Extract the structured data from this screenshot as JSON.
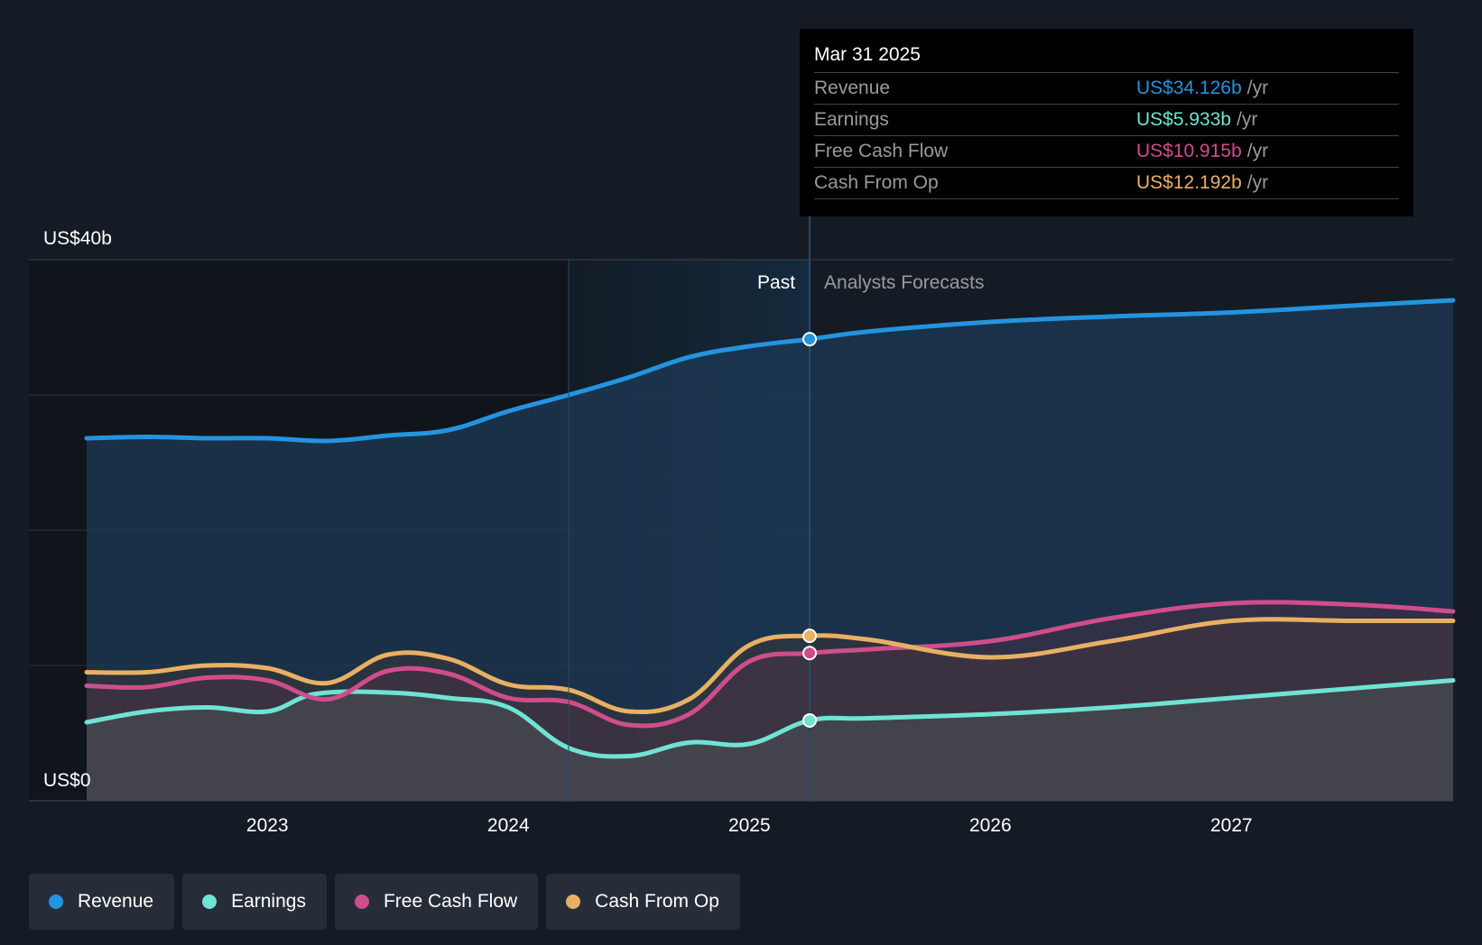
{
  "tooltip": {
    "date": "Mar 31 2025",
    "rows": [
      {
        "label": "Revenue",
        "value": "US$34.126b",
        "unit": "/yr",
        "color": "#2394df"
      },
      {
        "label": "Earnings",
        "value": "US$5.933b",
        "unit": "/yr",
        "color": "#6fe3d4"
      },
      {
        "label": "Free Cash Flow",
        "value": "US$10.915b",
        "unit": "/yr",
        "color": "#d04d8c"
      },
      {
        "label": "Cash From Op",
        "value": "US$12.192b",
        "unit": "/yr",
        "color": "#e9b063"
      }
    ]
  },
  "legend": [
    {
      "label": "Revenue",
      "color": "#2394df"
    },
    {
      "label": "Earnings",
      "color": "#6fe3d4"
    },
    {
      "label": "Free Cash Flow",
      "color": "#d04d8c"
    },
    {
      "label": "Cash From Op",
      "color": "#e9b063"
    }
  ],
  "chart_data": {
    "type": "area",
    "y_top_label": "US$40b",
    "y_bottom_label": "US$0",
    "ylim": [
      0,
      40
    ],
    "xlim": [
      2022.15,
      2027.92
    ],
    "x_ticks": [
      "2023",
      "2024",
      "2025",
      "2026",
      "2027"
    ],
    "x_tick_values": [
      2023,
      2024,
      2025,
      2026,
      2027
    ],
    "past_label": "Past",
    "forecast_label": "Analysts Forecasts",
    "divider_x": 2025.25,
    "highlight_start": 2024.25,
    "series": [
      {
        "name": "Revenue",
        "color": "#2394df",
        "key": "revenue",
        "points": [
          [
            2022.25,
            26.8
          ],
          [
            2022.5,
            26.9
          ],
          [
            2022.75,
            26.8
          ],
          [
            2023.0,
            26.8
          ],
          [
            2023.25,
            26.6
          ],
          [
            2023.5,
            27.0
          ],
          [
            2023.75,
            27.4
          ],
          [
            2024.0,
            28.8
          ],
          [
            2024.25,
            30.0
          ],
          [
            2024.5,
            31.3
          ],
          [
            2024.75,
            32.8
          ],
          [
            2025.0,
            33.6
          ],
          [
            2025.25,
            34.126
          ],
          [
            2025.5,
            34.7
          ],
          [
            2026.0,
            35.4
          ],
          [
            2026.5,
            35.8
          ],
          [
            2027.0,
            36.1
          ],
          [
            2027.5,
            36.6
          ],
          [
            2027.92,
            37.0
          ]
        ]
      },
      {
        "name": "Earnings",
        "color": "#6fe3d4",
        "key": "earnings",
        "points": [
          [
            2022.25,
            5.8
          ],
          [
            2022.5,
            6.6
          ],
          [
            2022.75,
            6.9
          ],
          [
            2023.0,
            6.6
          ],
          [
            2023.2,
            7.9
          ],
          [
            2023.5,
            8.0
          ],
          [
            2023.75,
            7.6
          ],
          [
            2024.0,
            6.9
          ],
          [
            2024.25,
            3.9
          ],
          [
            2024.5,
            3.3
          ],
          [
            2024.75,
            4.3
          ],
          [
            2025.0,
            4.2
          ],
          [
            2025.25,
            5.933
          ],
          [
            2025.5,
            6.1
          ],
          [
            2026.0,
            6.4
          ],
          [
            2026.5,
            6.9
          ],
          [
            2027.0,
            7.6
          ],
          [
            2027.5,
            8.3
          ],
          [
            2027.92,
            8.9
          ]
        ]
      },
      {
        "name": "Free Cash Flow",
        "color": "#d04d8c",
        "key": "fcf",
        "points": [
          [
            2022.25,
            8.5
          ],
          [
            2022.5,
            8.4
          ],
          [
            2022.75,
            9.1
          ],
          [
            2023.0,
            8.9
          ],
          [
            2023.25,
            7.5
          ],
          [
            2023.5,
            9.6
          ],
          [
            2023.75,
            9.4
          ],
          [
            2024.0,
            7.6
          ],
          [
            2024.25,
            7.3
          ],
          [
            2024.5,
            5.6
          ],
          [
            2024.75,
            6.4
          ],
          [
            2025.0,
            10.3
          ],
          [
            2025.25,
            10.915
          ],
          [
            2025.5,
            11.2
          ],
          [
            2026.0,
            11.8
          ],
          [
            2026.5,
            13.5
          ],
          [
            2027.0,
            14.6
          ],
          [
            2027.5,
            14.5
          ],
          [
            2027.92,
            14.0
          ]
        ]
      },
      {
        "name": "Cash From Op",
        "color": "#e9b063",
        "key": "cfo",
        "points": [
          [
            2022.25,
            9.5
          ],
          [
            2022.5,
            9.5
          ],
          [
            2022.75,
            10.0
          ],
          [
            2023.0,
            9.8
          ],
          [
            2023.25,
            8.7
          ],
          [
            2023.5,
            10.8
          ],
          [
            2023.75,
            10.5
          ],
          [
            2024.0,
            8.6
          ],
          [
            2024.25,
            8.2
          ],
          [
            2024.5,
            6.6
          ],
          [
            2024.75,
            7.5
          ],
          [
            2025.0,
            11.5
          ],
          [
            2025.25,
            12.192
          ],
          [
            2025.5,
            11.9
          ],
          [
            2026.0,
            10.6
          ],
          [
            2026.5,
            11.8
          ],
          [
            2027.0,
            13.3
          ],
          [
            2027.5,
            13.3
          ],
          [
            2027.92,
            13.3
          ]
        ]
      }
    ]
  }
}
